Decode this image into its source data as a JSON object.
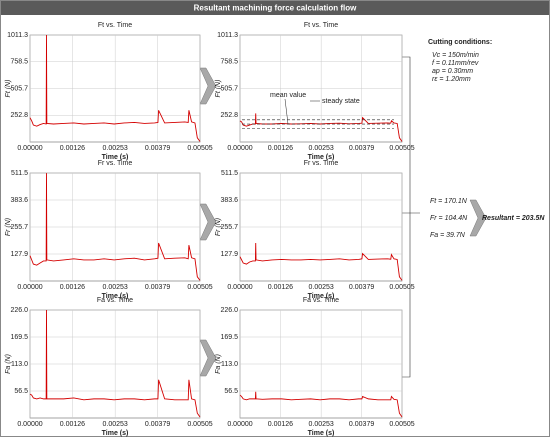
{
  "title": "Resultant machining force calculation flow",
  "conditions": {
    "heading": "Cutting conditions:",
    "items": [
      "Vc = 150m/min",
      "f  = 0.11mm/rev",
      "ap = 0.30mm",
      "rε = 1.20mm"
    ]
  },
  "results": {
    "items": [
      "Ft = 170.1N",
      "Fr = 104.4N",
      "Fa =  39.7N"
    ],
    "resultant": "Resultant = 203.5N"
  },
  "chart_data": [
    {
      "type": "line",
      "title": "Ft vs. Time",
      "x_label": "Time (s)",
      "y_label": "Ft (N)",
      "color": "#d40000",
      "grid": true,
      "x": [
        0,
        5e-05,
        0.0001,
        0.0002,
        0.0003,
        0.0004,
        0.00048,
        0.00049,
        0.0005,
        0.0007,
        0.001,
        0.0013,
        0.0016,
        0.0019,
        0.0022,
        0.0025,
        0.0028,
        0.0031,
        0.0034,
        0.0037,
        0.0038,
        0.00382,
        0.004,
        0.0043,
        0.0046,
        0.0047,
        0.00472,
        0.0048,
        0.0049,
        0.00497,
        0.00505
      ],
      "values": [
        230,
        200,
        160,
        150,
        165,
        175,
        170,
        1011,
        175,
        170,
        175,
        180,
        170,
        175,
        180,
        170,
        180,
        185,
        175,
        180,
        185,
        300,
        180,
        185,
        190,
        185,
        300,
        190,
        180,
        40,
        5
      ],
      "xlim": [
        0,
        0.00505
      ],
      "xticks": [
        {
          "value": 0,
          "label": "0.00000"
        },
        0.00126,
        0.00253,
        0.00379,
        0.00505
      ],
      "ylim": [
        0,
        1011.3
      ],
      "yticks": [
        252.8,
        505.7,
        758.5,
        1011.3
      ]
    },
    {
      "type": "line",
      "title": "Ft vs. Time",
      "x_label": "Time (s)",
      "y_label": "Ft (N)",
      "color": "#d40000",
      "grid": true,
      "annotations": [
        "mean value",
        "steady state"
      ],
      "x": [
        0,
        5e-05,
        0.0001,
        0.0002,
        0.0003,
        0.0004,
        0.00048,
        0.00049,
        0.0005,
        0.0007,
        0.001,
        0.0013,
        0.0016,
        0.0019,
        0.0022,
        0.0025,
        0.0028,
        0.0031,
        0.0034,
        0.0037,
        0.0038,
        0.00382,
        0.004,
        0.0043,
        0.0046,
        0.0047,
        0.00472,
        0.0048,
        0.0049,
        0.00497,
        0.00505
      ],
      "values": [
        200,
        190,
        160,
        150,
        160,
        170,
        170,
        270,
        175,
        170,
        170,
        175,
        170,
        172,
        175,
        170,
        175,
        178,
        172,
        175,
        178,
        230,
        175,
        178,
        180,
        178,
        200,
        180,
        175,
        40,
        5
      ],
      "xlim": [
        0,
        0.00505
      ],
      "xticks": [
        {
          "value": 0,
          "label": "0.00000"
        },
        0.00126,
        0.00253,
        0.00379,
        0.00505
      ],
      "ylim": [
        0,
        1011.3
      ],
      "yticks": [
        252.8,
        505.7,
        758.5,
        1011.3
      ]
    },
    {
      "type": "line",
      "title": "Fr vs. Time",
      "x_label": "Time (s)",
      "y_label": "Fr (N)",
      "color": "#d40000",
      "grid": true,
      "x": [
        0,
        5e-05,
        0.0001,
        0.0002,
        0.0003,
        0.0004,
        0.00048,
        0.00049,
        0.0005,
        0.0007,
        0.001,
        0.0013,
        0.0016,
        0.0019,
        0.0022,
        0.0025,
        0.0028,
        0.0031,
        0.0034,
        0.0037,
        0.0038,
        0.00382,
        0.004,
        0.0043,
        0.0046,
        0.0047,
        0.00472,
        0.0048,
        0.0049,
        0.00497,
        0.00505
      ],
      "values": [
        120,
        100,
        80,
        75,
        85,
        95,
        95,
        511,
        100,
        95,
        100,
        105,
        100,
        100,
        105,
        100,
        105,
        108,
        100,
        105,
        108,
        180,
        105,
        108,
        110,
        105,
        170,
        110,
        105,
        20,
        3
      ],
      "xlim": [
        0,
        0.00505
      ],
      "xticks": [
        {
          "value": 0,
          "label": "0.00000"
        },
        0.00126,
        0.00253,
        0.00379,
        0.00505
      ],
      "ylim": [
        0,
        511.5
      ],
      "yticks": [
        127.9,
        255.7,
        383.6,
        511.5
      ]
    },
    {
      "type": "line",
      "title": "Fr vs. Time",
      "x_label": "Time (s)",
      "y_label": "Fr (N)",
      "color": "#d40000",
      "grid": true,
      "x": [
        0,
        5e-05,
        0.0001,
        0.0002,
        0.0003,
        0.0004,
        0.00048,
        0.00049,
        0.0005,
        0.0007,
        0.001,
        0.0013,
        0.0016,
        0.0019,
        0.0022,
        0.0025,
        0.0028,
        0.0031,
        0.0034,
        0.0037,
        0.0038,
        0.00382,
        0.004,
        0.0043,
        0.0046,
        0.0047,
        0.00472,
        0.0048,
        0.0049,
        0.00497,
        0.00505
      ],
      "values": [
        115,
        100,
        85,
        80,
        90,
        95,
        95,
        180,
        100,
        95,
        100,
        102,
        100,
        100,
        102,
        100,
        102,
        105,
        100,
        102,
        105,
        130,
        102,
        104,
        105,
        103,
        125,
        105,
        102,
        20,
        3
      ],
      "xlim": [
        0,
        0.00505
      ],
      "xticks": [
        {
          "value": 0,
          "label": "0.00000"
        },
        0.00126,
        0.00253,
        0.00379,
        0.00505
      ],
      "ylim": [
        0,
        511.5
      ],
      "yticks": [
        127.9,
        255.7,
        383.6,
        511.5
      ]
    },
    {
      "type": "line",
      "title": "Fa vs. Time",
      "x_label": "Time (s)",
      "y_label": "Fa (N)",
      "color": "#d40000",
      "grid": true,
      "x": [
        0,
        5e-05,
        0.0001,
        0.0002,
        0.0003,
        0.0004,
        0.00048,
        0.00049,
        0.0005,
        0.0007,
        0.001,
        0.0013,
        0.0016,
        0.0019,
        0.0022,
        0.0025,
        0.0028,
        0.0031,
        0.0034,
        0.0037,
        0.0038,
        0.00382,
        0.004,
        0.0043,
        0.0046,
        0.0047,
        0.00472,
        0.0048,
        0.0049,
        0.00497,
        0.00505
      ],
      "values": [
        50,
        48,
        42,
        40,
        42,
        40,
        40,
        226,
        40,
        40,
        40,
        42,
        38,
        40,
        40,
        38,
        40,
        40,
        38,
        40,
        40,
        80,
        40,
        38,
        38,
        38,
        80,
        40,
        38,
        10,
        2
      ],
      "xlim": [
        0,
        0.00505
      ],
      "xticks": [
        {
          "value": 0,
          "label": "0.00000"
        },
        0.00126,
        0.00253,
        0.00379,
        0.00505
      ],
      "ylim": [
        0,
        226
      ],
      "yticks": [
        56.5,
        {
          "value": 113,
          "label": "113.0"
        },
        169.5,
        {
          "value": 226,
          "label": "226.0"
        }
      ]
    },
    {
      "type": "line",
      "title": "Fa vs. Time",
      "x_label": "Time (s)",
      "y_label": "Fa (N)",
      "color": "#d40000",
      "grid": true,
      "x": [
        0,
        5e-05,
        0.0001,
        0.0002,
        0.0003,
        0.0004,
        0.00048,
        0.00049,
        0.0005,
        0.0007,
        0.001,
        0.0013,
        0.0016,
        0.0019,
        0.0022,
        0.0025,
        0.0028,
        0.0031,
        0.0034,
        0.0037,
        0.0038,
        0.00382,
        0.004,
        0.0043,
        0.0046,
        0.0047,
        0.00472,
        0.0048,
        0.0049,
        0.00497,
        0.00505
      ],
      "values": [
        48,
        45,
        40,
        38,
        40,
        40,
        40,
        55,
        40,
        39,
        40,
        40,
        38,
        39,
        40,
        38,
        40,
        40,
        38,
        40,
        40,
        45,
        40,
        38,
        38,
        38,
        45,
        39,
        38,
        10,
        2
      ],
      "xlim": [
        0,
        0.00505
      ],
      "xticks": [
        {
          "value": 0,
          "label": "0.00000"
        },
        0.00126,
        0.00253,
        0.00379,
        0.00505
      ],
      "ylim": [
        0,
        226
      ],
      "yticks": [
        56.5,
        {
          "value": 113,
          "label": "113.0"
        },
        169.5,
        {
          "value": 226,
          "label": "226.0"
        }
      ]
    }
  ]
}
